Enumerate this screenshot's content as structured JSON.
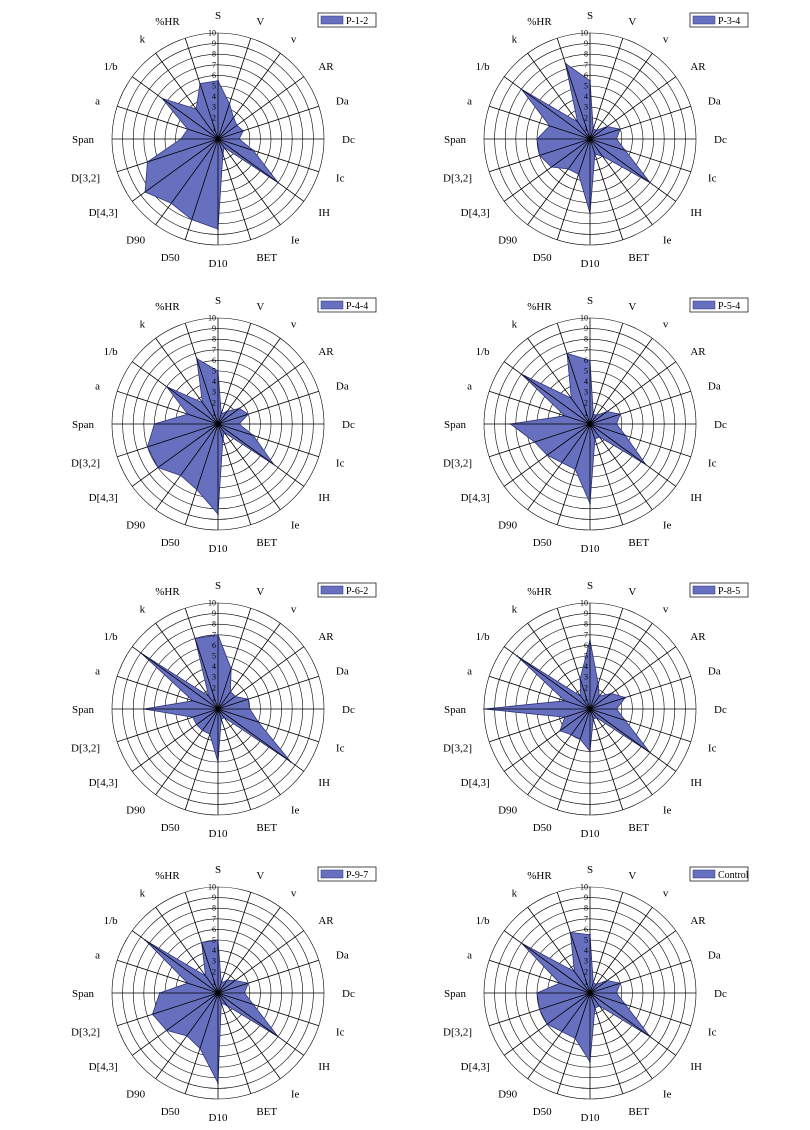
{
  "style": {
    "fill": "#6670BF",
    "stroke": "#2E3478",
    "grid": "#000000",
    "background": "#FFFFFF"
  },
  "chart_data": [
    {
      "type": "radar",
      "legend": "P-1-2",
      "legend_position": "top-right",
      "axes": [
        "S",
        "V",
        "v",
        "AR",
        "Da",
        "Dc",
        "Ic",
        "IH",
        "Ie",
        "BET",
        "D10",
        "D50",
        "D90",
        "D[4,3]",
        "D[3,2]",
        "Span",
        "a",
        "1/b",
        "k",
        "%HR"
      ],
      "rlim": [
        0,
        10
      ],
      "ticks": [
        "1",
        "2",
        "3",
        "4",
        "5",
        "6",
        "7",
        "8",
        "9",
        "10"
      ],
      "grid": true,
      "values": [
        5.5,
        3.5,
        2.5,
        2.2,
        2.5,
        2.0,
        3.5,
        7.0,
        1.0,
        1.5,
        8.5,
        8.0,
        7.5,
        8.5,
        7.0,
        3.5,
        3.0,
        6.5,
        3.5,
        5.5
      ]
    },
    {
      "type": "radar",
      "legend": "P-3-4",
      "legend_position": "top-right",
      "axes": [
        "S",
        "V",
        "v",
        "AR",
        "Da",
        "Dc",
        "Ic",
        "IH",
        "Ie",
        "BET",
        "D10",
        "D50",
        "D90",
        "D[4,3]",
        "D[3,2]",
        "Span",
        "a",
        "1/b",
        "k",
        "%HR"
      ],
      "rlim": [
        0,
        10
      ],
      "ticks": [
        "1",
        "2",
        "3",
        "4",
        "5",
        "6",
        "7",
        "8",
        "9",
        "10"
      ],
      "grid": true,
      "values": [
        5.5,
        1.0,
        1.0,
        2.0,
        3.0,
        2.5,
        3.5,
        7.0,
        2.0,
        1.5,
        7.0,
        3.5,
        3.5,
        4.5,
        5.0,
        5.0,
        4.0,
        8.0,
        2.0,
        7.5
      ]
    },
    {
      "type": "radar",
      "legend": "P-4-4",
      "legend_position": "top-right",
      "axes": [
        "S",
        "V",
        "v",
        "AR",
        "Da",
        "Dc",
        "Ic",
        "IH",
        "Ie",
        "BET",
        "D10",
        "D50",
        "D90",
        "D[4,3]",
        "D[3,2]",
        "Span",
        "a",
        "1/b",
        "k",
        "%HR"
      ],
      "rlim": [
        0,
        10
      ],
      "ticks": [
        "1",
        "2",
        "3",
        "4",
        "5",
        "6",
        "7",
        "8",
        "9",
        "10"
      ],
      "grid": true,
      "values": [
        5.0,
        1.0,
        1.5,
        2.5,
        3.0,
        2.0,
        3.5,
        6.5,
        1.0,
        1.5,
        8.5,
        6.5,
        6.0,
        7.0,
        7.0,
        6.0,
        3.0,
        6.0,
        2.5,
        6.5
      ]
    },
    {
      "type": "radar",
      "legend": "P-5-4",
      "legend_position": "top-right",
      "axes": [
        "S",
        "V",
        "v",
        "AR",
        "Da",
        "Dc",
        "Ic",
        "IH",
        "Ie",
        "BET",
        "D10",
        "D50",
        "D90",
        "D[4,3]",
        "D[3,2]",
        "Span",
        "a",
        "1/b",
        "k",
        "%HR"
      ],
      "rlim": [
        0,
        10
      ],
      "ticks": [
        "1",
        "2",
        "3",
        "4",
        "5",
        "6",
        "7",
        "8",
        "9",
        "10"
      ],
      "grid": true,
      "values": [
        6.0,
        1.0,
        1.0,
        2.0,
        3.0,
        2.5,
        3.5,
        6.5,
        1.5,
        1.5,
        7.5,
        4.5,
        4.5,
        5.0,
        5.5,
        7.5,
        2.5,
        8.0,
        3.0,
        7.0
      ]
    },
    {
      "type": "radar",
      "legend": "P-6-2",
      "legend_position": "top-right",
      "axes": [
        "S",
        "V",
        "v",
        "AR",
        "Da",
        "Dc",
        "Ic",
        "IH",
        "Ie",
        "BET",
        "D10",
        "D50",
        "D90",
        "D[4,3]",
        "D[3,2]",
        "Span",
        "a",
        "1/b",
        "k",
        "%HR"
      ],
      "rlim": [
        0,
        10
      ],
      "ticks": [
        "1",
        "2",
        "3",
        "4",
        "5",
        "6",
        "7",
        "8",
        "9",
        "10"
      ],
      "grid": true,
      "values": [
        7.0,
        4.0,
        2.0,
        2.0,
        3.0,
        3.0,
        4.0,
        8.5,
        1.0,
        1.0,
        5.0,
        2.5,
        2.5,
        2.5,
        2.5,
        7.0,
        2.5,
        9.0,
        1.5,
        7.0
      ]
    },
    {
      "type": "radar",
      "legend": "P-8-5",
      "legend_position": "top-right",
      "axes": [
        "S",
        "V",
        "v",
        "AR",
        "Da",
        "Dc",
        "Ic",
        "IH",
        "Ie",
        "BET",
        "D10",
        "D50",
        "D90",
        "D[4,3]",
        "D[3,2]",
        "Span",
        "a",
        "1/b",
        "k",
        "%HR"
      ],
      "rlim": [
        0,
        10
      ],
      "ticks": [
        "1",
        "2",
        "3",
        "4",
        "5",
        "6",
        "7",
        "8",
        "9",
        "10"
      ],
      "grid": true,
      "values": [
        6.5,
        2.5,
        1.5,
        2.5,
        3.5,
        2.5,
        3.5,
        7.0,
        1.0,
        1.0,
        4.0,
        3.0,
        3.0,
        3.5,
        2.5,
        10.0,
        2.5,
        8.5,
        1.5,
        3.0
      ]
    },
    {
      "type": "radar",
      "legend": "P-9-7",
      "legend_position": "top-right",
      "axes": [
        "S",
        "V",
        "v",
        "AR",
        "Da",
        "Dc",
        "Ic",
        "IH",
        "Ie",
        "BET",
        "D10",
        "D50",
        "D90",
        "D[4,3]",
        "D[3,2]",
        "Span",
        "a",
        "1/b",
        "k",
        "%HR"
      ],
      "rlim": [
        0,
        10
      ],
      "ticks": [
        "1",
        "2",
        "3",
        "4",
        "5",
        "6",
        "7",
        "8",
        "9",
        "10"
      ],
      "grid": true,
      "values": [
        5.0,
        1.0,
        1.5,
        2.0,
        3.0,
        2.5,
        3.5,
        7.0,
        1.5,
        1.0,
        8.5,
        5.5,
        5.0,
        6.0,
        6.5,
        5.5,
        3.0,
        8.5,
        2.0,
        5.0
      ]
    },
    {
      "type": "radar",
      "legend": "Control",
      "legend_position": "top-right",
      "axes": [
        "S",
        "V",
        "v",
        "AR",
        "Da",
        "Dc",
        "Ic",
        "IH",
        "Ie",
        "BET",
        "D10",
        "D50",
        "D90",
        "D[4,3]",
        "D[3,2]",
        "Span",
        "a",
        "1/b",
        "k",
        "%HR"
      ],
      "rlim": [
        0,
        10
      ],
      "ticks": [
        "1",
        "2",
        "3",
        "4",
        "5",
        "6",
        "7",
        "8",
        "9",
        "10"
      ],
      "grid": true,
      "values": [
        5.5,
        1.0,
        1.0,
        2.0,
        3.0,
        2.5,
        3.5,
        7.0,
        1.5,
        1.5,
        6.5,
        4.5,
        4.5,
        5.0,
        5.0,
        5.0,
        3.0,
        8.0,
        2.5,
        6.0
      ]
    }
  ]
}
